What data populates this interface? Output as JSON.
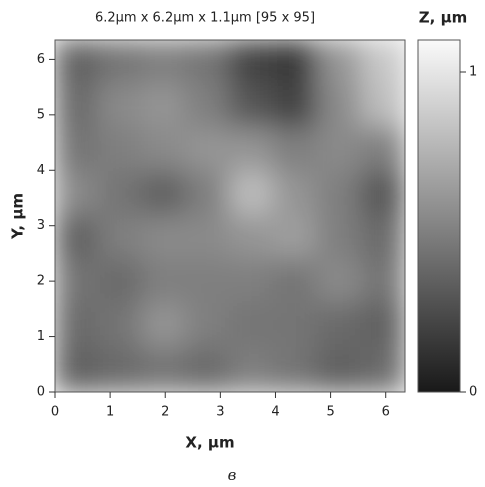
{
  "chart_data": {
    "type": "heatmap",
    "title": "6.2µm x 6.2µm x 1.1µm [95 x 95]",
    "xlabel": "X, µm",
    "ylabel": "Y, µm",
    "xlim": [
      0,
      6.35
    ],
    "ylim": [
      0,
      6.35
    ],
    "xticks": [
      0,
      1,
      2,
      3,
      4,
      5,
      6
    ],
    "yticks": [
      0,
      1,
      2,
      3,
      4,
      5,
      6
    ],
    "colormap": "gray",
    "z": [
      [
        0.35,
        0.45,
        0.5,
        0.45,
        0.2,
        0.15,
        0.6,
        0.85
      ],
      [
        0.4,
        0.55,
        0.6,
        0.5,
        0.3,
        0.2,
        0.55,
        0.8
      ],
      [
        0.45,
        0.5,
        0.55,
        0.6,
        0.6,
        0.5,
        0.55,
        0.5
      ],
      [
        0.55,
        0.45,
        0.35,
        0.5,
        0.8,
        0.6,
        0.5,
        0.3
      ],
      [
        0.35,
        0.5,
        0.55,
        0.55,
        0.6,
        0.65,
        0.5,
        0.4
      ],
      [
        0.45,
        0.4,
        0.5,
        0.5,
        0.5,
        0.45,
        0.55,
        0.45
      ],
      [
        0.4,
        0.45,
        0.6,
        0.5,
        0.45,
        0.45,
        0.4,
        0.35
      ],
      [
        0.35,
        0.4,
        0.45,
        0.4,
        0.5,
        0.45,
        0.35,
        0.4
      ]
    ],
    "colorbar": {
      "label": "Z, µm",
      "zlim": [
        0,
        1.1
      ],
      "ticks": [
        0,
        1
      ]
    }
  },
  "caption": "в"
}
